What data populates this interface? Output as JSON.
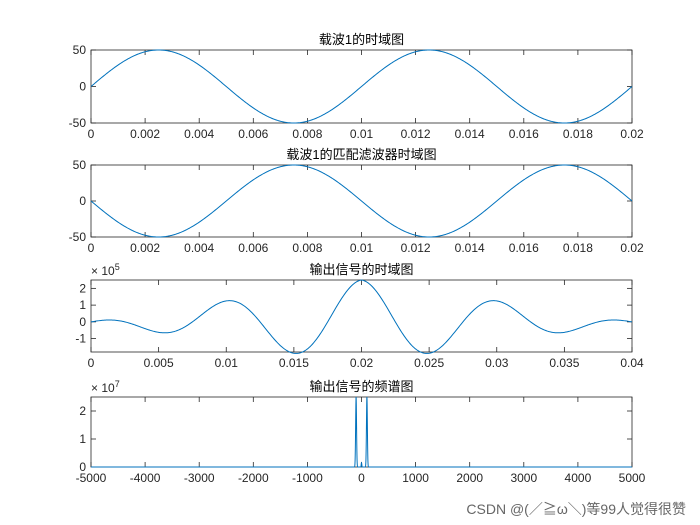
{
  "watermark": "CSDN @(／≧ω＼)等99人觉得很赞",
  "chart_data": [
    {
      "type": "line",
      "title": "载波1的时域图",
      "xlim": [
        0,
        0.02
      ],
      "ylim": [
        -50,
        50
      ],
      "xticks": [
        0,
        0.002,
        0.004,
        0.006,
        0.008,
        0.01,
        0.012,
        0.014,
        0.016,
        0.018,
        0.02
      ],
      "xtick_labels": [
        "0",
        "0.002",
        "0.004",
        "0.006",
        "0.008",
        "0.01",
        "0.012",
        "0.014",
        "0.016",
        "0.018",
        "0.02"
      ],
      "yticks": [
        -50,
        0,
        50
      ],
      "ytick_labels": [
        "-50",
        "0",
        "50"
      ],
      "exponent_label": "",
      "signal": {
        "form": "sine",
        "amplitude": 50,
        "frequency_hz": 100,
        "phase_deg": 0
      },
      "color": "#0072BD"
    },
    {
      "type": "line",
      "title": "载波1的匹配滤波器时域图",
      "xlim": [
        0,
        0.02
      ],
      "ylim": [
        -50,
        50
      ],
      "xticks": [
        0,
        0.002,
        0.004,
        0.006,
        0.008,
        0.01,
        0.012,
        0.014,
        0.016,
        0.018,
        0.02
      ],
      "xtick_labels": [
        "0",
        "0.002",
        "0.004",
        "0.006",
        "0.008",
        "0.01",
        "0.012",
        "0.014",
        "0.016",
        "0.018",
        "0.02"
      ],
      "yticks": [
        -50,
        0,
        50
      ],
      "ytick_labels": [
        "-50",
        "0",
        "50"
      ],
      "exponent_label": "",
      "signal": {
        "form": "sine",
        "amplitude": 50,
        "frequency_hz": 100,
        "phase_deg": 180
      },
      "color": "#0072BD"
    },
    {
      "type": "line",
      "title": "输出信号的时域图",
      "xlim": [
        0,
        0.04
      ],
      "ylim": [
        -1.8,
        2.5
      ],
      "xticks": [
        0,
        0.005,
        0.01,
        0.015,
        0.02,
        0.025,
        0.03,
        0.035,
        0.04
      ],
      "xtick_labels": [
        "0",
        "0.005",
        "0.01",
        "0.015",
        "0.02",
        "0.025",
        "0.03",
        "0.035",
        "0.04"
      ],
      "yticks": [
        -1,
        0,
        1,
        2
      ],
      "ytick_labels": [
        "-1",
        "0",
        "1",
        "2"
      ],
      "exponent_label": "× 10^5",
      "signal": {
        "form": "correlation",
        "amplitude": 2.5,
        "frequency_hz": 100,
        "center": 0.02,
        "half_width": 0.02
      },
      "color": "#0072BD"
    },
    {
      "type": "line",
      "title": "输出信号的频谱图",
      "xlim": [
        -5000,
        5000
      ],
      "ylim": [
        0,
        2.5
      ],
      "xticks": [
        -5000,
        -4000,
        -3000,
        -2000,
        -1000,
        0,
        1000,
        2000,
        3000,
        4000,
        5000
      ],
      "xtick_labels": [
        "-5000",
        "-4000",
        "-3000",
        "-2000",
        "-1000",
        "0",
        "1000",
        "2000",
        "3000",
        "4000",
        "5000"
      ],
      "yticks": [
        0,
        1,
        2
      ],
      "ytick_labels": [
        "0",
        "1",
        "2"
      ],
      "exponent_label": "× 10^7",
      "signal": {
        "form": "spectrum",
        "peaks_hz": [
          -100,
          100
        ],
        "peak_value": 2.5
      },
      "color": "#0072BD"
    }
  ]
}
